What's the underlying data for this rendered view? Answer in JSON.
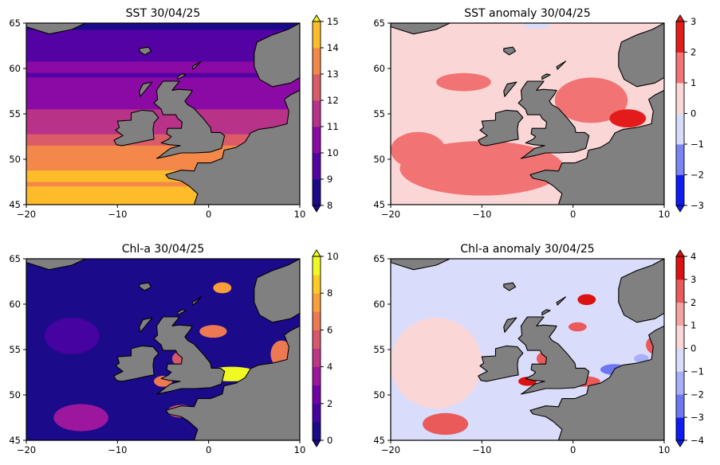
{
  "figure": {
    "land_color": "#808080",
    "frame_color": "#000000"
  },
  "chart_data": [
    {
      "type": "heatmap",
      "title": "SST 30/04/25",
      "variable": "SST",
      "xlim": [
        -20,
        10
      ],
      "ylim": [
        45,
        65
      ],
      "xticks": [
        -20,
        -10,
        0,
        10
      ],
      "yticks": [
        45,
        50,
        55,
        60,
        65
      ],
      "colorbar": {
        "levels": [
          8,
          9,
          10,
          11,
          12,
          13,
          14,
          15
        ],
        "ticks": [
          8,
          9,
          10,
          11,
          12,
          13,
          14,
          15
        ],
        "colors": [
          "#1b0a8a",
          "#5402a3",
          "#8b0aa5",
          "#b83289",
          "#db5c68",
          "#f48849",
          "#febc2a",
          "#f0f921"
        ],
        "extend": "both"
      },
      "gradient": "latitudinal",
      "mean_field": [
        9,
        10,
        11,
        12,
        13.5,
        14.5
      ],
      "mean_field_lat": [
        63,
        60,
        56,
        53,
        50,
        46
      ]
    },
    {
      "type": "heatmap",
      "title": "SST anomaly 30/04/25",
      "variable": "SST anomaly",
      "xlim": [
        -20,
        10
      ],
      "ylim": [
        45,
        65
      ],
      "xticks": [
        -20,
        -10,
        0,
        10
      ],
      "yticks": [
        45,
        50,
        55,
        60,
        65
      ],
      "colorbar": {
        "levels": [
          -3,
          -2,
          -1,
          0,
          1,
          2,
          3
        ],
        "ticks": [
          -3,
          -2,
          -1,
          0,
          1,
          2,
          3
        ],
        "colors": [
          "#0d1cf0",
          "#7b84f5",
          "#d8dcfb",
          "#fbd6d6",
          "#f27373",
          "#e31b1b"
        ],
        "extend": "both"
      },
      "background_value": 0.5,
      "patches": [
        {
          "lon": -10,
          "lat": 49,
          "rx": 9,
          "ry": 3,
          "value": 1.5
        },
        {
          "lon": -17,
          "lat": 51,
          "rx": 3,
          "ry": 2,
          "value": 1.5
        },
        {
          "lon": 2,
          "lat": 56.5,
          "rx": 4,
          "ry": 2.5,
          "value": 1.5
        },
        {
          "lon": 6,
          "lat": 54.5,
          "rx": 2,
          "ry": 1,
          "value": 2.5
        },
        {
          "lon": -12,
          "lat": 58.5,
          "rx": 3,
          "ry": 1,
          "value": 1.5
        },
        {
          "lon": -4,
          "lat": 64.8,
          "rx": 1.5,
          "ry": 0.4,
          "value": -0.5
        }
      ]
    },
    {
      "type": "heatmap",
      "title": "Chl-a 30/04/25",
      "variable": "Chl-a",
      "xlim": [
        -20,
        10
      ],
      "ylim": [
        45,
        65
      ],
      "xticks": [
        -20,
        -10,
        0,
        10
      ],
      "yticks": [
        45,
        50,
        55,
        60,
        65
      ],
      "colorbar": {
        "levels": [
          0,
          1,
          2,
          3,
          4,
          5,
          6,
          7,
          8,
          9,
          10
        ],
        "ticks": [
          0,
          2,
          4,
          6,
          8,
          10
        ],
        "colors": [
          "#1b0a8a",
          "#46039f",
          "#7201a8",
          "#9c179e",
          "#bd3786",
          "#d8576b",
          "#ed7953",
          "#fb9f3a",
          "#fdca26",
          "#f0f921"
        ],
        "extend": "both"
      },
      "background_value": 0.5,
      "patches": [
        {
          "lon": 2.5,
          "lat": 52.3,
          "rx": 3,
          "ry": 0.8,
          "value": 9
        },
        {
          "lon": 0.5,
          "lat": 57,
          "rx": 1.5,
          "ry": 0.7,
          "value": 6
        },
        {
          "lon": 1.5,
          "lat": 61.8,
          "rx": 1,
          "ry": 0.6,
          "value": 7
        },
        {
          "lon": -5,
          "lat": 51.5,
          "rx": 1,
          "ry": 0.6,
          "value": 6
        },
        {
          "lon": -3,
          "lat": 54,
          "rx": 1,
          "ry": 0.8,
          "value": 5
        },
        {
          "lon": -3,
          "lat": 48.2,
          "rx": 1.5,
          "ry": 0.7,
          "value": 5
        },
        {
          "lon": 8,
          "lat": 54.5,
          "rx": 1.2,
          "ry": 1.5,
          "value": 6
        },
        {
          "lon": -14,
          "lat": 47.5,
          "rx": 3,
          "ry": 1.5,
          "value": 3
        },
        {
          "lon": -15,
          "lat": 56.5,
          "rx": 3,
          "ry": 2,
          "value": 1.5
        }
      ]
    },
    {
      "type": "heatmap",
      "title": "Chl-a anomaly 30/04/25",
      "variable": "Chl-a anomaly",
      "xlim": [
        -20,
        10
      ],
      "ylim": [
        45,
        65
      ],
      "xticks": [
        -20,
        -10,
        0,
        10
      ],
      "yticks": [
        45,
        50,
        55,
        60,
        65
      ],
      "colorbar": {
        "levels": [
          -4,
          -3,
          -2,
          -1,
          0,
          1,
          2,
          3,
          4
        ],
        "ticks": [
          -4,
          -3,
          -2,
          -1,
          0,
          1,
          2,
          3,
          4
        ],
        "colors": [
          "#0d1cf0",
          "#6e77f3",
          "#a9aef8",
          "#dadcfb",
          "#fbd6d6",
          "#f4a3a3",
          "#ea5a5a",
          "#dc1111"
        ],
        "extend": "both"
      },
      "background_value": -0.5,
      "patches": [
        {
          "lon": -15,
          "lat": 53.5,
          "rx": 5,
          "ry": 5,
          "value": 0.5
        },
        {
          "lon": -14,
          "lat": 46.8,
          "rx": 2.5,
          "ry": 1.2,
          "value": 2.5
        },
        {
          "lon": 1.5,
          "lat": 60.5,
          "rx": 1,
          "ry": 0.6,
          "value": 3
        },
        {
          "lon": -5,
          "lat": 51.5,
          "rx": 1,
          "ry": 0.5,
          "value": 3
        },
        {
          "lon": -3,
          "lat": 54,
          "rx": 1,
          "ry": 0.8,
          "value": 2
        },
        {
          "lon": 1,
          "lat": 51.5,
          "rx": 2,
          "ry": 0.6,
          "value": 2.5
        },
        {
          "lon": 4.5,
          "lat": 52.8,
          "rx": 1.5,
          "ry": 0.6,
          "value": -2.5
        },
        {
          "lon": 7.5,
          "lat": 54,
          "rx": 0.8,
          "ry": 0.5,
          "value": -2
        },
        {
          "lon": 9,
          "lat": 55.5,
          "rx": 1,
          "ry": 1,
          "value": 2
        },
        {
          "lon": 0.5,
          "lat": 57.5,
          "rx": 1,
          "ry": 0.5,
          "value": 2
        }
      ]
    }
  ]
}
